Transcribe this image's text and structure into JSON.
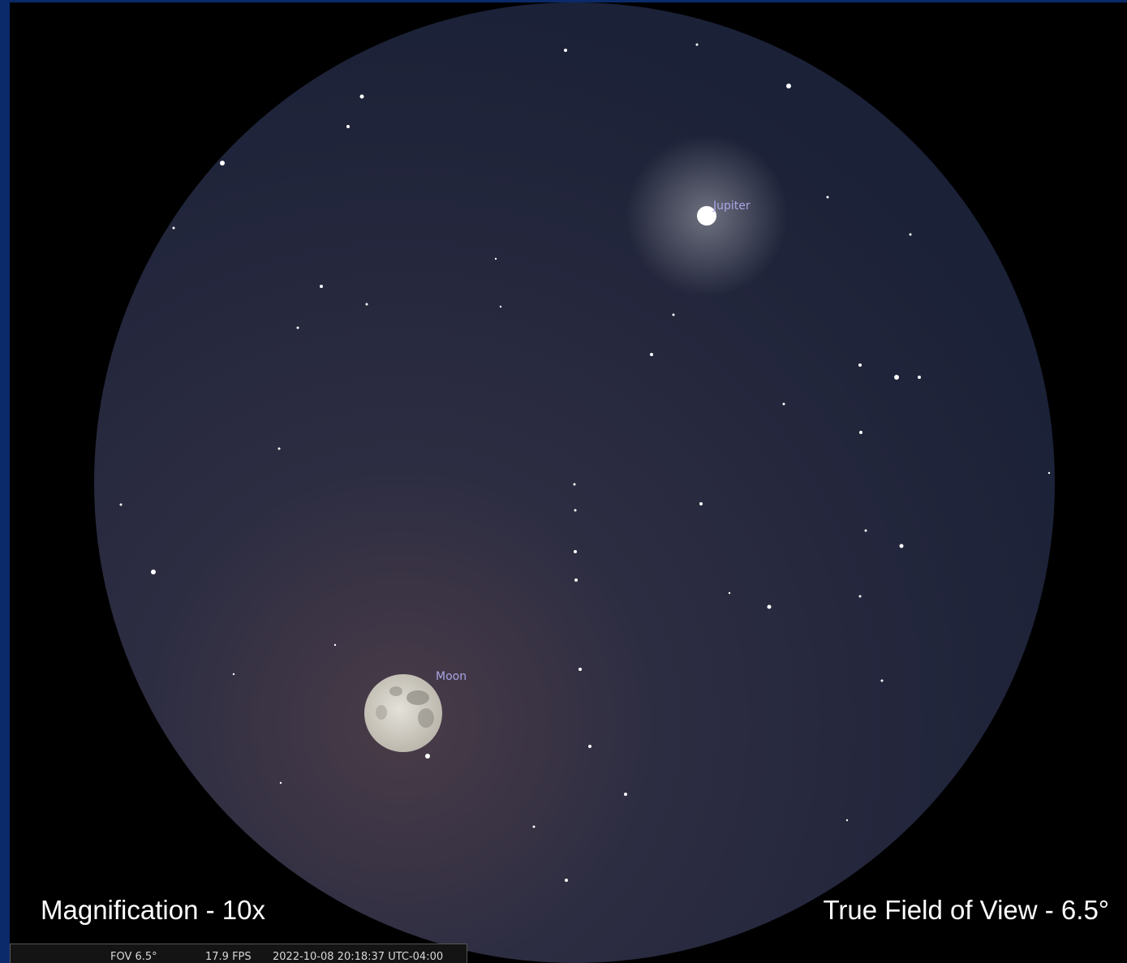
{
  "labels": {
    "jupiter": "Jupiter",
    "moon": "Moon"
  },
  "captions": {
    "magnification": "Magnification - 10x",
    "field_of_view": "True Field of View - 6.5°"
  },
  "status_bar": {
    "fov": "FOV 6.5°",
    "fps": "17.9 FPS",
    "datetime": "2022-10-08 20:18:37 UTC-04:00"
  }
}
